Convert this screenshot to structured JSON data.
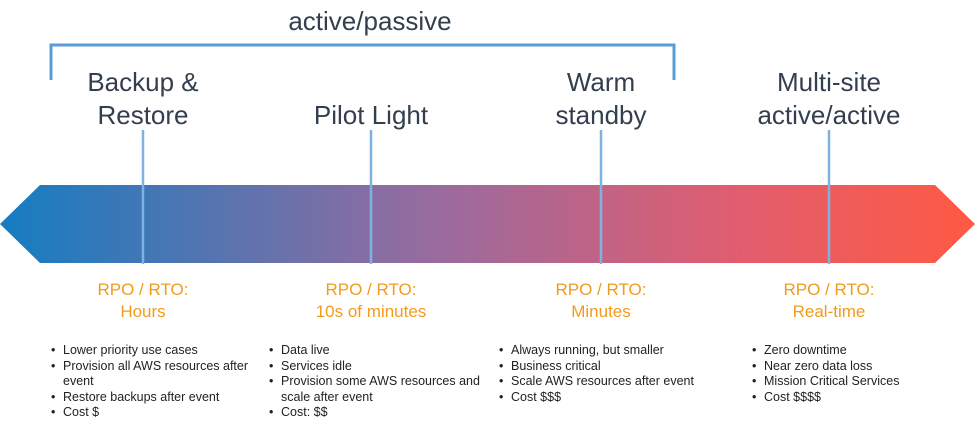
{
  "bracket_label": "active/passive",
  "strategies": [
    {
      "title": [
        "Backup &",
        "Restore"
      ],
      "rpo": [
        "RPO / RTO:",
        "Hours"
      ],
      "bullets": [
        "Lower priority use cases",
        "Provision all AWS resources after event",
        "Restore backups after event",
        "Cost $"
      ]
    },
    {
      "title": [
        "Pilot Light"
      ],
      "rpo": [
        "RPO / RTO:",
        "10s of minutes"
      ],
      "bullets": [
        "Data live",
        "Services idle",
        "Provision some AWS resources and scale after event",
        "Cost: $$"
      ]
    },
    {
      "title": [
        "Warm",
        "standby"
      ],
      "rpo": [
        "RPO / RTO:",
        "Minutes"
      ],
      "bullets": [
        "Always running, but smaller",
        "Business critical",
        "Scale AWS resources after event",
        "Cost $$$"
      ]
    },
    {
      "title": [
        "Multi-site",
        "active/active"
      ],
      "rpo": [
        "RPO / RTO:",
        "Real-time"
      ],
      "bullets": [
        "Zero downtime",
        "Near zero data loss",
        "Mission Critical Services",
        "Cost $$$$"
      ]
    }
  ]
}
